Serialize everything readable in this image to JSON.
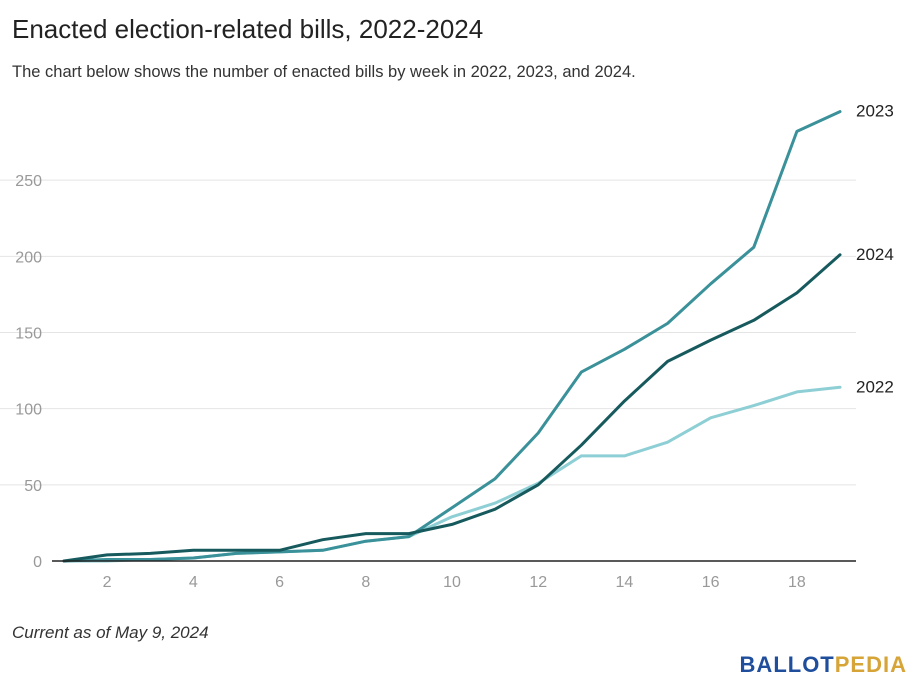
{
  "header": {
    "title": "Enacted election-related bills, 2022-2024",
    "subtitle": "The chart below shows the number of enacted bills by week in 2022, 2023, and 2024."
  },
  "footer": {
    "note": "Current as of May 9, 2024",
    "logo_part1": "BALLOT",
    "logo_part2": "PEDIA"
  },
  "colors": {
    "2022": "#8ecfd5",
    "2023": "#3a9199",
    "2024": "#175a5e",
    "grid": "#e4e4e4",
    "axis": "#222222",
    "tick_label": "#999999",
    "logo_blue": "#1f4e9c",
    "logo_gold": "#d6a437"
  },
  "chart_data": {
    "type": "line",
    "title": "Enacted election-related bills, 2022-2024",
    "xlabel": "",
    "ylabel": "",
    "x": [
      1,
      2,
      3,
      4,
      5,
      6,
      7,
      8,
      9,
      10,
      11,
      12,
      13,
      14,
      15,
      16,
      17,
      18,
      19
    ],
    "xlim": [
      1,
      19
    ],
    "ylim": [
      0,
      300
    ],
    "xticks": [
      2,
      4,
      6,
      8,
      10,
      12,
      14,
      16,
      18
    ],
    "yticks": [
      0,
      50,
      100,
      150,
      200,
      250
    ],
    "grid": "horizontal",
    "legend": "direct labels at line ends",
    "series": [
      {
        "name": "2022",
        "values": [
          0,
          0,
          1,
          2,
          5,
          6,
          7,
          13,
          16,
          29,
          38,
          51,
          69,
          69,
          78,
          94,
          102,
          111,
          114
        ]
      },
      {
        "name": "2023",
        "values": [
          0,
          1,
          1,
          2,
          5,
          6,
          7,
          13,
          16,
          35,
          54,
          84,
          124,
          139,
          156,
          182,
          206,
          282,
          295
        ]
      },
      {
        "name": "2024",
        "values": [
          0,
          4,
          5,
          7,
          7,
          7,
          14,
          18,
          18,
          24,
          34,
          50,
          76,
          105,
          131,
          145,
          158,
          176,
          201
        ]
      }
    ]
  }
}
